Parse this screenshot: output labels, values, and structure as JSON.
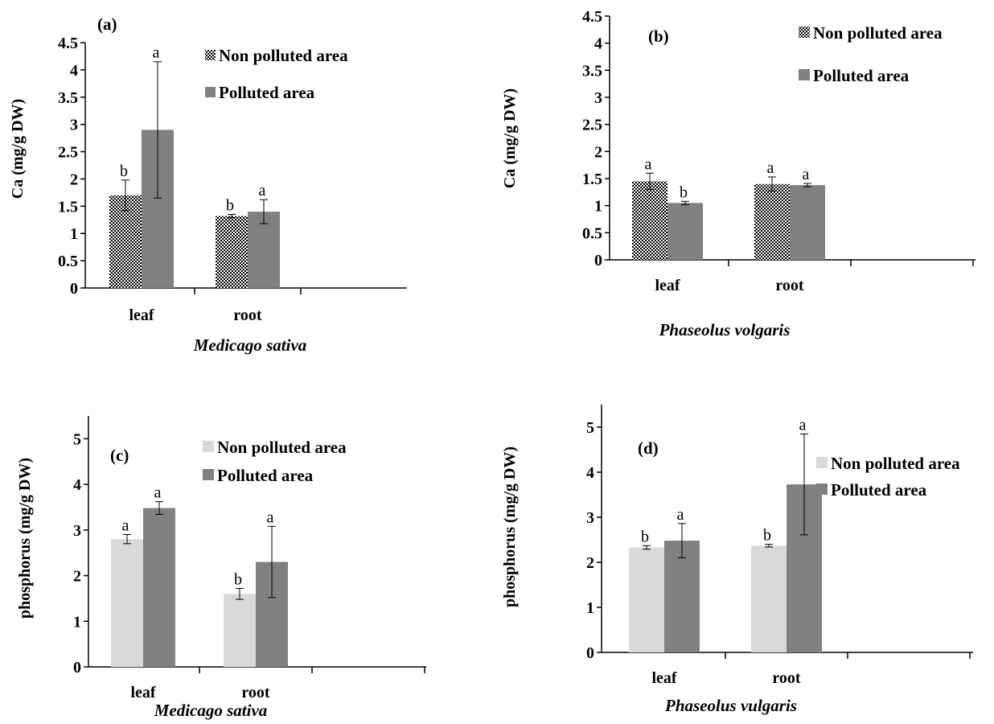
{
  "colors": {
    "non_polluted_hatch": "#000000",
    "non_polluted_light": "#d9d9d9",
    "polluted": "#808080",
    "axis": "#000000"
  },
  "chart_data": [
    {
      "type": "bar",
      "panel_label": "(a)",
      "xlabel": "Medicago sativa",
      "ylabel": "Ca (mg/g DW)",
      "categories": [
        "leaf",
        "root"
      ],
      "ylim": [
        0,
        4.5
      ],
      "yticks": [
        "0",
        "0.5",
        "1",
        "1.5",
        "2",
        "2.5",
        "3",
        "3.5",
        "4",
        "4.5"
      ],
      "legend_position": "top-right",
      "series": [
        {
          "name": "Non polluted area",
          "pattern": "hatch",
          "values": [
            1.7,
            1.32
          ],
          "errors": [
            0.28,
            0.03
          ],
          "sig": [
            "b",
            "b"
          ]
        },
        {
          "name": "Polluted area",
          "pattern": "solid",
          "values": [
            2.9,
            1.4
          ],
          "errors": [
            1.25,
            0.22
          ],
          "sig": [
            "a",
            "a"
          ]
        }
      ]
    },
    {
      "type": "bar",
      "panel_label": "(b)",
      "xlabel": "Phaseolus volgaris",
      "ylabel": "Ca (mg/g DW)",
      "categories": [
        "leaf",
        "root"
      ],
      "ylim": [
        0,
        4.5
      ],
      "yticks": [
        "0",
        "0.5",
        "1",
        "1.5",
        "2",
        "2.5",
        "3",
        "3.5",
        "4",
        "4.5"
      ],
      "legend_position": "top-right",
      "series": [
        {
          "name": "Non polluted area",
          "pattern": "hatch",
          "values": [
            1.45,
            1.4
          ],
          "errors": [
            0.15,
            0.13
          ],
          "sig": [
            "a",
            "a"
          ]
        },
        {
          "name": "Polluted area",
          "pattern": "solid",
          "values": [
            1.05,
            1.38
          ],
          "errors": [
            0.03,
            0.03
          ],
          "sig": [
            "b",
            "a"
          ]
        }
      ]
    },
    {
      "type": "bar",
      "panel_label": "(c)",
      "xlabel": "Medicago sativa",
      "ylabel": "phosphorus  (mg/g DW)",
      "categories": [
        "leaf",
        "root"
      ],
      "ylim": [
        0,
        5.5
      ],
      "yticks": [
        "0",
        "1",
        "2",
        "3",
        "4",
        "5"
      ],
      "legend_position": "top-right",
      "series": [
        {
          "name": "Non polluted area",
          "pattern": "light",
          "values": [
            2.8,
            1.6
          ],
          "errors": [
            0.1,
            0.12
          ],
          "sig": [
            "a",
            "b"
          ]
        },
        {
          "name": "Polluted area",
          "pattern": "solid",
          "values": [
            3.48,
            2.3
          ],
          "errors": [
            0.14,
            0.78
          ],
          "sig": [
            "a",
            "a"
          ]
        }
      ]
    },
    {
      "type": "bar",
      "panel_label": "(d)",
      "xlabel": "Phaseolus vulgaris",
      "ylabel": "phosphorus  (mg/g DW)",
      "categories": [
        "leaf",
        "root"
      ],
      "ylim": [
        0,
        5.5
      ],
      "yticks": [
        "0",
        "1",
        "2",
        "3",
        "4",
        "5"
      ],
      "legend_position": "top-right",
      "series": [
        {
          "name": "Non polluted area",
          "pattern": "light",
          "values": [
            2.33,
            2.37
          ],
          "errors": [
            0.04,
            0.03
          ],
          "sig": [
            "b",
            "b"
          ]
        },
        {
          "name": "Polluted area",
          "pattern": "solid",
          "values": [
            2.48,
            3.73
          ],
          "errors": [
            0.38,
            1.12
          ],
          "sig": [
            "a",
            "a"
          ]
        }
      ]
    }
  ]
}
